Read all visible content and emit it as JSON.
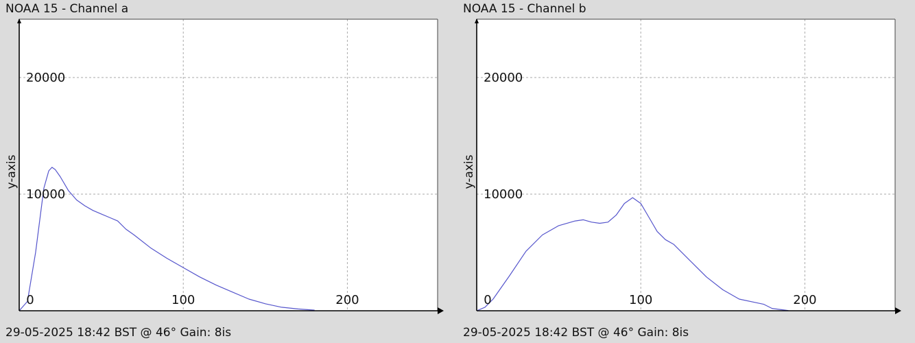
{
  "panels": [
    {
      "id": "a",
      "title": "NOAA 15 - Channel a",
      "footer": "29-05-2025 18:42 BST @ 46° Gain: 8is",
      "ylabel": "y-axis"
    },
    {
      "id": "b",
      "title": "NOAA 15 - Channel b",
      "footer": "29-05-2025 18:42 BST @ 46° Gain: 8is",
      "ylabel": "y-axis"
    }
  ],
  "colors": {
    "line": "#5555cc",
    "grid": "#aaaaaa",
    "axis": "#000000",
    "plot_bg": "#ffffff",
    "page_bg": "#dcdcdc"
  },
  "chart_data": [
    {
      "type": "line",
      "title": "NOAA 15 - Channel a",
      "xlabel": "",
      "ylabel": "y-axis",
      "xlim": [
        0,
        255
      ],
      "ylim": [
        0,
        25000
      ],
      "x_ticks": [
        0,
        100,
        200
      ],
      "y_ticks": [
        10000,
        20000
      ],
      "grid": true,
      "series": [
        {
          "x": [
            0,
            5,
            10,
            15,
            18,
            20,
            22,
            25,
            30,
            35,
            40,
            45,
            50,
            55,
            60,
            65,
            70,
            80,
            90,
            100,
            110,
            120,
            130,
            140,
            150,
            160,
            170,
            180
          ],
          "y": [
            0,
            800,
            5000,
            10500,
            12000,
            12300,
            12100,
            11500,
            10300,
            9500,
            9000,
            8600,
            8300,
            8000,
            7700,
            7000,
            6500,
            5400,
            4500,
            3700,
            2900,
            2200,
            1600,
            1000,
            600,
            300,
            150,
            50
          ]
        }
      ]
    },
    {
      "type": "line",
      "title": "NOAA 15 - Channel b",
      "xlabel": "",
      "ylabel": "y-axis",
      "xlim": [
        0,
        255
      ],
      "ylim": [
        0,
        25000
      ],
      "x_ticks": [
        0,
        100,
        200
      ],
      "y_ticks": [
        10000,
        20000
      ],
      "grid": true,
      "series": [
        {
          "x": [
            0,
            5,
            10,
            20,
            30,
            40,
            50,
            60,
            65,
            70,
            75,
            80,
            85,
            90,
            95,
            100,
            105,
            110,
            115,
            120,
            130,
            140,
            150,
            160,
            170,
            175,
            180,
            190
          ],
          "y": [
            0,
            300,
            1000,
            3000,
            5100,
            6500,
            7300,
            7700,
            7800,
            7600,
            7500,
            7600,
            8200,
            9200,
            9700,
            9200,
            8000,
            6800,
            6100,
            5700,
            4300,
            2900,
            1800,
            1000,
            700,
            550,
            200,
            20
          ]
        }
      ]
    }
  ]
}
